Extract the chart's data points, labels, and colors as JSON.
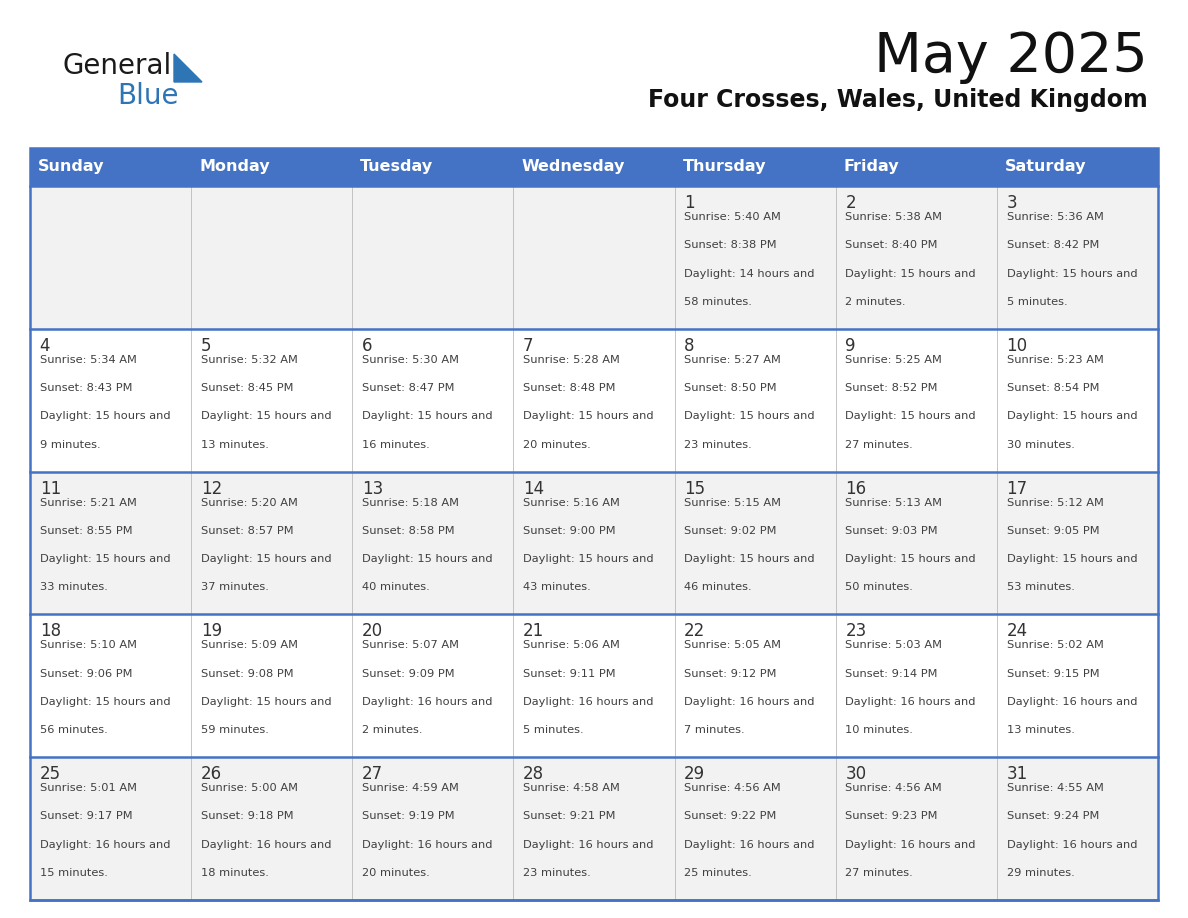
{
  "title": "May 2025",
  "subtitle": "Four Crosses, Wales, United Kingdom",
  "header_bg": "#4472C4",
  "header_text_color": "#FFFFFF",
  "day_names": [
    "Sunday",
    "Monday",
    "Tuesday",
    "Wednesday",
    "Thursday",
    "Friday",
    "Saturday"
  ],
  "row_bg_light": "#F2F2F2",
  "row_bg_white": "#FFFFFF",
  "cell_text_color": "#404040",
  "day_number_color": "#333333",
  "divider_color": "#4472C4",
  "weeks": [
    {
      "days": [
        {
          "day": null,
          "sunrise": null,
          "sunset": null,
          "daylight": null
        },
        {
          "day": null,
          "sunrise": null,
          "sunset": null,
          "daylight": null
        },
        {
          "day": null,
          "sunrise": null,
          "sunset": null,
          "daylight": null
        },
        {
          "day": null,
          "sunrise": null,
          "sunset": null,
          "daylight": null
        },
        {
          "day": 1,
          "sunrise": "5:40 AM",
          "sunset": "8:38 PM",
          "daylight": "14 hours and 58 minutes"
        },
        {
          "day": 2,
          "sunrise": "5:38 AM",
          "sunset": "8:40 PM",
          "daylight": "15 hours and 2 minutes"
        },
        {
          "day": 3,
          "sunrise": "5:36 AM",
          "sunset": "8:42 PM",
          "daylight": "15 hours and 5 minutes"
        }
      ]
    },
    {
      "days": [
        {
          "day": 4,
          "sunrise": "5:34 AM",
          "sunset": "8:43 PM",
          "daylight": "15 hours and 9 minutes"
        },
        {
          "day": 5,
          "sunrise": "5:32 AM",
          "sunset": "8:45 PM",
          "daylight": "15 hours and 13 minutes"
        },
        {
          "day": 6,
          "sunrise": "5:30 AM",
          "sunset": "8:47 PM",
          "daylight": "15 hours and 16 minutes"
        },
        {
          "day": 7,
          "sunrise": "5:28 AM",
          "sunset": "8:48 PM",
          "daylight": "15 hours and 20 minutes"
        },
        {
          "day": 8,
          "sunrise": "5:27 AM",
          "sunset": "8:50 PM",
          "daylight": "15 hours and 23 minutes"
        },
        {
          "day": 9,
          "sunrise": "5:25 AM",
          "sunset": "8:52 PM",
          "daylight": "15 hours and 27 minutes"
        },
        {
          "day": 10,
          "sunrise": "5:23 AM",
          "sunset": "8:54 PM",
          "daylight": "15 hours and 30 minutes"
        }
      ]
    },
    {
      "days": [
        {
          "day": 11,
          "sunrise": "5:21 AM",
          "sunset": "8:55 PM",
          "daylight": "15 hours and 33 minutes"
        },
        {
          "day": 12,
          "sunrise": "5:20 AM",
          "sunset": "8:57 PM",
          "daylight": "15 hours and 37 minutes"
        },
        {
          "day": 13,
          "sunrise": "5:18 AM",
          "sunset": "8:58 PM",
          "daylight": "15 hours and 40 minutes"
        },
        {
          "day": 14,
          "sunrise": "5:16 AM",
          "sunset": "9:00 PM",
          "daylight": "15 hours and 43 minutes"
        },
        {
          "day": 15,
          "sunrise": "5:15 AM",
          "sunset": "9:02 PM",
          "daylight": "15 hours and 46 minutes"
        },
        {
          "day": 16,
          "sunrise": "5:13 AM",
          "sunset": "9:03 PM",
          "daylight": "15 hours and 50 minutes"
        },
        {
          "day": 17,
          "sunrise": "5:12 AM",
          "sunset": "9:05 PM",
          "daylight": "15 hours and 53 minutes"
        }
      ]
    },
    {
      "days": [
        {
          "day": 18,
          "sunrise": "5:10 AM",
          "sunset": "9:06 PM",
          "daylight": "15 hours and 56 minutes"
        },
        {
          "day": 19,
          "sunrise": "5:09 AM",
          "sunset": "9:08 PM",
          "daylight": "15 hours and 59 minutes"
        },
        {
          "day": 20,
          "sunrise": "5:07 AM",
          "sunset": "9:09 PM",
          "daylight": "16 hours and 2 minutes"
        },
        {
          "day": 21,
          "sunrise": "5:06 AM",
          "sunset": "9:11 PM",
          "daylight": "16 hours and 5 minutes"
        },
        {
          "day": 22,
          "sunrise": "5:05 AM",
          "sunset": "9:12 PM",
          "daylight": "16 hours and 7 minutes"
        },
        {
          "day": 23,
          "sunrise": "5:03 AM",
          "sunset": "9:14 PM",
          "daylight": "16 hours and 10 minutes"
        },
        {
          "day": 24,
          "sunrise": "5:02 AM",
          "sunset": "9:15 PM",
          "daylight": "16 hours and 13 minutes"
        }
      ]
    },
    {
      "days": [
        {
          "day": 25,
          "sunrise": "5:01 AM",
          "sunset": "9:17 PM",
          "daylight": "16 hours and 15 minutes"
        },
        {
          "day": 26,
          "sunrise": "5:00 AM",
          "sunset": "9:18 PM",
          "daylight": "16 hours and 18 minutes"
        },
        {
          "day": 27,
          "sunrise": "4:59 AM",
          "sunset": "9:19 PM",
          "daylight": "16 hours and 20 minutes"
        },
        {
          "day": 28,
          "sunrise": "4:58 AM",
          "sunset": "9:21 PM",
          "daylight": "16 hours and 23 minutes"
        },
        {
          "day": 29,
          "sunrise": "4:56 AM",
          "sunset": "9:22 PM",
          "daylight": "16 hours and 25 minutes"
        },
        {
          "day": 30,
          "sunrise": "4:56 AM",
          "sunset": "9:23 PM",
          "daylight": "16 hours and 27 minutes"
        },
        {
          "day": 31,
          "sunrise": "4:55 AM",
          "sunset": "9:24 PM",
          "daylight": "16 hours and 29 minutes"
        }
      ]
    }
  ]
}
